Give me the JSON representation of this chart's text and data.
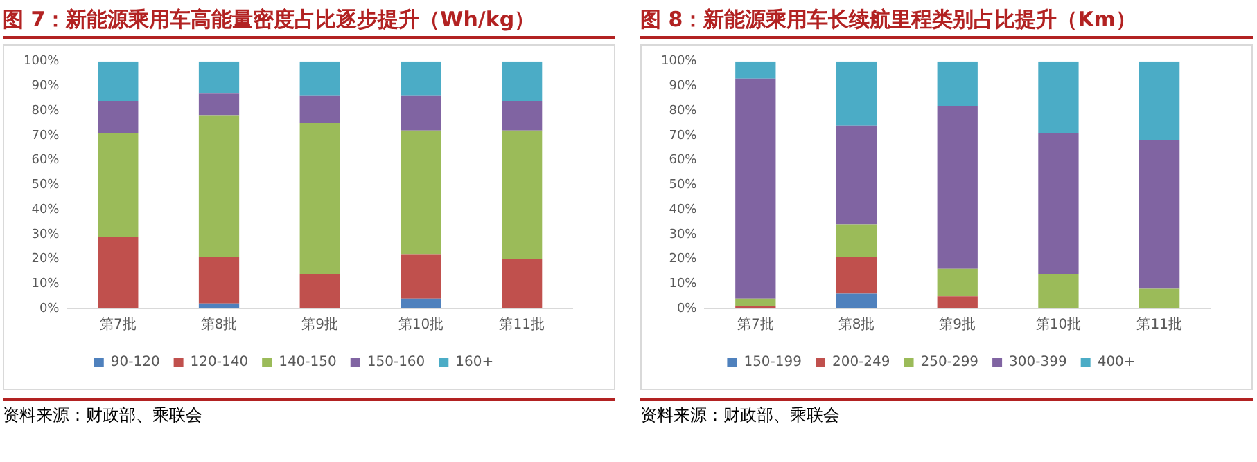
{
  "chart_data": [
    {
      "type": "bar",
      "stacked": true,
      "title": "图 7：新能源乘用车高能量密度占比逐步提升（Wh/kg）",
      "annotations": [
        "资料来源：财政部、乘联会"
      ],
      "categories": [
        "第7批",
        "第8批",
        "第9批",
        "第10批",
        "第11批"
      ],
      "series": [
        {
          "name": "90-120",
          "color": "#4f81bd",
          "values": [
            0,
            2,
            0,
            4,
            0
          ]
        },
        {
          "name": "120-140",
          "color": "#c0504d",
          "values": [
            29,
            19,
            14,
            18,
            20
          ]
        },
        {
          "name": "140-150",
          "color": "#9bbb59",
          "values": [
            42,
            57,
            61,
            50,
            52
          ]
        },
        {
          "name": "150-160",
          "color": "#8064a2",
          "values": [
            13,
            9,
            11,
            14,
            12
          ]
        },
        {
          "name": "160+",
          "color": "#4bacc6",
          "values": [
            16,
            13,
            14,
            14,
            16
          ]
        }
      ],
      "ylim": [
        0,
        100
      ],
      "yticks": [
        {
          "value": 0,
          "label": "0%"
        },
        {
          "value": 10,
          "label": "10%"
        },
        {
          "value": 20,
          "label": "20%"
        },
        {
          "value": 30,
          "label": "30%"
        },
        {
          "value": 40,
          "label": "40%"
        },
        {
          "value": 50,
          "label": "50%"
        },
        {
          "value": 60,
          "label": "60%"
        },
        {
          "value": 70,
          "label": "70%"
        },
        {
          "value": 80,
          "label": "80%"
        },
        {
          "value": 90,
          "label": "90%"
        },
        {
          "value": 100,
          "label": "100%"
        }
      ],
      "grid": false,
      "legend": "bottom"
    },
    {
      "type": "bar",
      "stacked": true,
      "title": "图 8：新能源乘用车长续航里程类别占比提升（Km）",
      "annotations": [
        "资料来源：财政部、乘联会"
      ],
      "categories": [
        "第7批",
        "第8批",
        "第9批",
        "第10批",
        "第11批"
      ],
      "series": [
        {
          "name": "150-199",
          "color": "#4f81bd",
          "values": [
            0,
            6,
            0,
            0,
            0
          ]
        },
        {
          "name": "200-249",
          "color": "#c0504d",
          "values": [
            1,
            15,
            5,
            0,
            0
          ]
        },
        {
          "name": "250-299",
          "color": "#9bbb59",
          "values": [
            3,
            13,
            11,
            14,
            8
          ]
        },
        {
          "name": "300-399",
          "color": "#8064a2",
          "values": [
            89,
            40,
            66,
            57,
            60
          ]
        },
        {
          "name": "400+",
          "color": "#4bacc6",
          "values": [
            7,
            26,
            18,
            29,
            32
          ]
        }
      ],
      "ylim": [
        0,
        100
      ],
      "yticks": [
        {
          "value": 0,
          "label": "0%"
        },
        {
          "value": 10,
          "label": "10%"
        },
        {
          "value": 20,
          "label": "20%"
        },
        {
          "value": 30,
          "label": "30%"
        },
        {
          "value": 40,
          "label": "40%"
        },
        {
          "value": 50,
          "label": "50%"
        },
        {
          "value": 60,
          "label": "60%"
        },
        {
          "value": 70,
          "label": "70%"
        },
        {
          "value": 80,
          "label": "80%"
        },
        {
          "value": 90,
          "label": "90%"
        },
        {
          "value": 100,
          "label": "100%"
        }
      ],
      "grid": false,
      "legend": "bottom"
    }
  ]
}
